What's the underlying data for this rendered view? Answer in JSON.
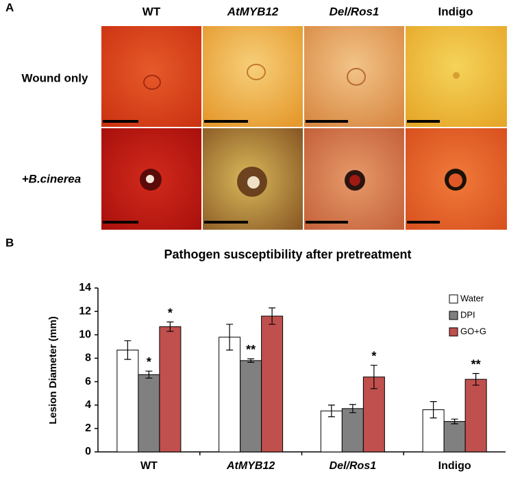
{
  "panel_a": {
    "label": "A",
    "columns": [
      "WT",
      "AtMYB12",
      "Del/Ros1",
      "Indigo"
    ],
    "rows": [
      "Wound only",
      "+B.cinerea"
    ]
  },
  "panel_b": {
    "label": "B"
  },
  "chart_data": {
    "type": "bar",
    "title": "Pathogen susceptibility after pretreatment",
    "y_label": "Lesion Diameter (mm)",
    "categories": [
      "WT",
      "AtMYB12",
      "Del/Ros1",
      "Indigo"
    ],
    "series": [
      {
        "name": "Water",
        "color": "#ffffff",
        "values": [
          8.7,
          9.8,
          3.5,
          3.6
        ],
        "errors": [
          0.8,
          1.1,
          0.5,
          0.7
        ],
        "labels": [
          null,
          null,
          null,
          null
        ]
      },
      {
        "name": "DPI",
        "color": "#808080",
        "values": [
          6.6,
          7.8,
          3.7,
          2.6
        ],
        "errors": [
          0.3,
          0.15,
          0.35,
          0.2
        ],
        "labels": [
          "*",
          "**",
          null,
          null
        ]
      },
      {
        "name": "GO+G",
        "color": "#c0504d",
        "values": [
          10.7,
          11.6,
          6.4,
          6.2
        ],
        "errors": [
          0.4,
          0.7,
          1.0,
          0.5
        ],
        "labels": [
          "*",
          null,
          "*",
          "**"
        ]
      }
    ],
    "ylim": [
      0,
      14
    ],
    "yticks": [
      0,
      2,
      4,
      6,
      8,
      10,
      12,
      14
    ],
    "legend": "upper right"
  }
}
